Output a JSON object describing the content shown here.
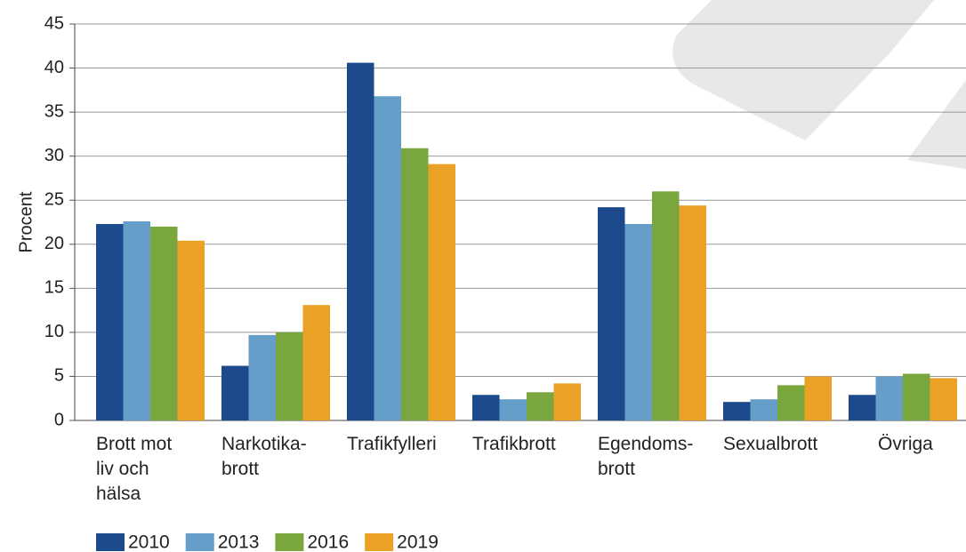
{
  "chart_data": {
    "type": "bar",
    "y_label": "Procent",
    "categories": [
      "Brott mot\nliv och\nhälsa",
      "Narkotika-\nbrott",
      "Trafikfylleri",
      "Trafikbrott",
      "Egendoms-\nbrott",
      "Sexualbrott",
      "Övriga"
    ],
    "series": [
      {
        "name": "2010",
        "color": "#1c4a8c",
        "values": [
          22.3,
          6.2,
          40.6,
          2.9,
          24.2,
          2.1,
          2.9
        ]
      },
      {
        "name": "2013",
        "color": "#659fc9",
        "values": [
          22.6,
          9.7,
          36.8,
          2.4,
          22.3,
          2.4,
          5.0
        ]
      },
      {
        "name": "2016",
        "color": "#7aa63e",
        "values": [
          22.0,
          10.0,
          30.9,
          3.2,
          26.0,
          4.0,
          5.3
        ]
      },
      {
        "name": "2019",
        "color": "#eba026",
        "values": [
          20.4,
          13.1,
          29.1,
          4.2,
          24.4,
          5.0,
          4.8
        ]
      }
    ],
    "ylim": [
      0,
      45
    ],
    "yticks": [
      0,
      5,
      10,
      15,
      20,
      25,
      30,
      35,
      40,
      45
    ],
    "grid": true
  }
}
